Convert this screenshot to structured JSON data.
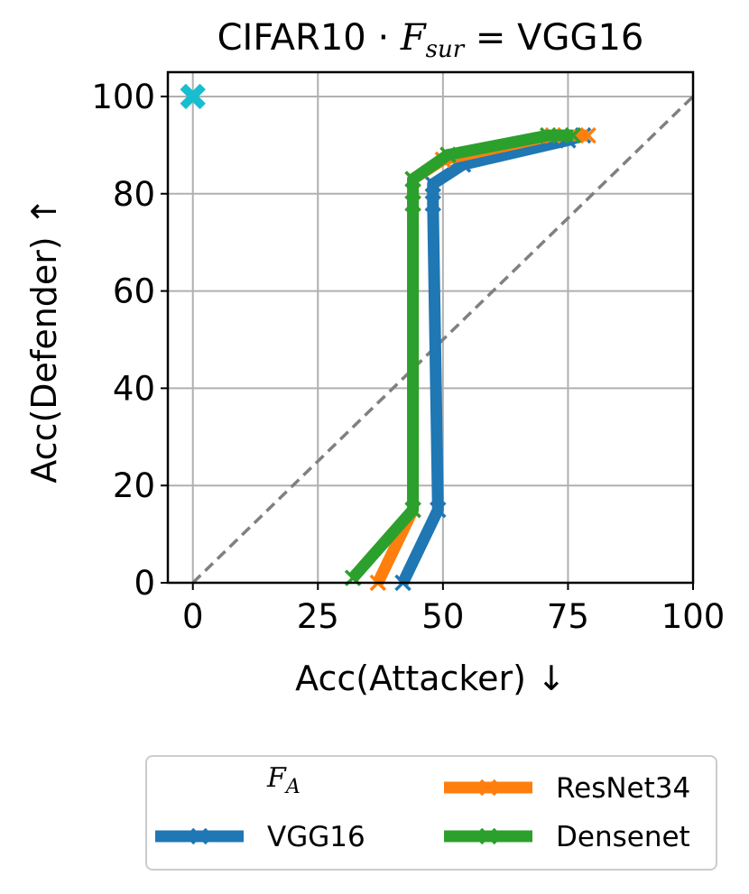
{
  "chart_data": {
    "type": "line",
    "title": "CIFAR10 · F_sur = VGG16",
    "title_parts": {
      "prefix": "CIFAR10 · ",
      "var": "F",
      "sub": "sur",
      "suffix": " = VGG16"
    },
    "xlabel": "Acc(Attacker) ↓",
    "ylabel": "Acc(Defender) ↑",
    "xlim": [
      -5,
      100
    ],
    "ylim": [
      0,
      105
    ],
    "xticks": [
      "0",
      "25",
      "50",
      "75",
      "100"
    ],
    "yticks": [
      "0",
      "20",
      "40",
      "60",
      "80",
      "100"
    ],
    "grid": true,
    "legend": {
      "title_var": "F",
      "title_sub": "A",
      "placement": "below",
      "ncol": 2
    },
    "colors": {
      "VGG16": "#1f77b4",
      "ResNet34": "#ff7f0e",
      "Densenet": "#2ca02c",
      "reference": "#17becf",
      "diagonal": "#808080"
    },
    "series": [
      {
        "name": "VGG16",
        "x": [
          42,
          49,
          48,
          48,
          54,
          75,
          78
        ],
        "y": [
          0,
          15,
          78,
          82,
          86,
          91,
          92
        ]
      },
      {
        "name": "ResNet34",
        "x": [
          37,
          44,
          44,
          44,
          50,
          72,
          79
        ],
        "y": [
          0,
          15,
          78,
          83,
          87,
          92,
          92
        ]
      },
      {
        "name": "Densenet",
        "x": [
          32,
          44,
          44,
          44,
          51,
          71,
          76
        ],
        "y": [
          1,
          15,
          78,
          83,
          88,
          92,
          92
        ]
      }
    ],
    "reference_point": {
      "x": 0,
      "y": 100
    },
    "diagonal": {
      "x": [
        0,
        100
      ],
      "y": [
        0,
        100
      ]
    }
  }
}
